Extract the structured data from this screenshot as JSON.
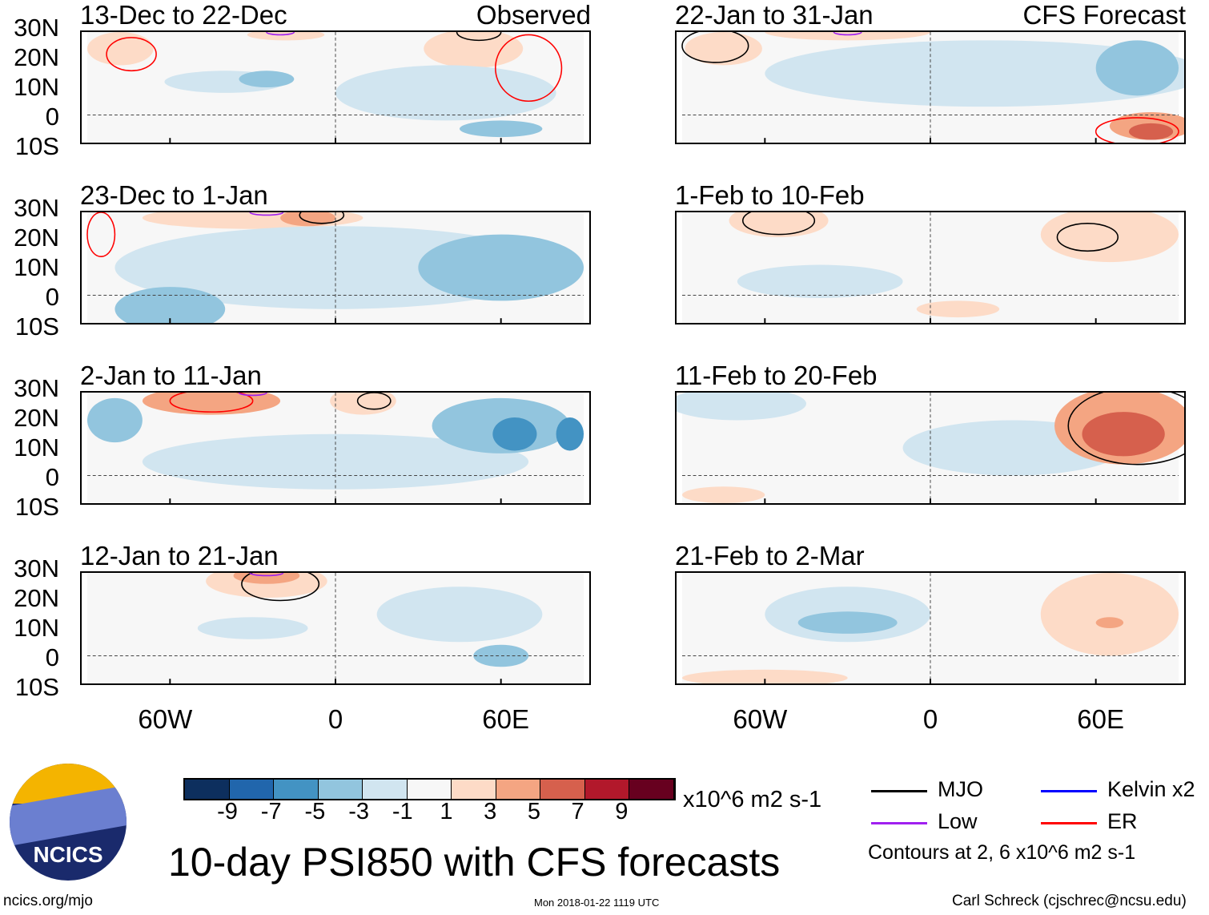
{
  "title": "10-day PSI850 with CFS forecasts",
  "footer": {
    "left": "ncics.org/mjo",
    "center": "Mon 2018-01-22 1119 UTC",
    "right": "Carl Schreck (cjschrec@ncsu.edu)"
  },
  "logo_text": "NCICS",
  "colorbar": {
    "unit": "x10^6 m2 s-1",
    "labels": [
      "-9",
      "-7",
      "-5",
      "-3",
      "-1",
      "1",
      "3",
      "5",
      "7",
      "9"
    ],
    "colors": [
      "#0d2f5e",
      "#2166ac",
      "#4393c3",
      "#92c5de",
      "#d1e5f0",
      "#f7f7f7",
      "#fddbc7",
      "#f4a582",
      "#d6604d",
      "#b2182b",
      "#67001f"
    ]
  },
  "legend": {
    "items": [
      {
        "label": "MJO",
        "color": "#000000"
      },
      {
        "label": "Kelvin x2",
        "color": "#0000ff"
      },
      {
        "label": "Low",
        "color": "#a020f0"
      },
      {
        "label": "ER",
        "color": "#ff0000"
      }
    ],
    "note": "Contours at 2, 6 x10^6 m2 s-1"
  },
  "axes": {
    "lat_labels": [
      "30N",
      "20N",
      "10N",
      "0",
      "10S"
    ],
    "lon_labels": [
      "60W",
      "0",
      "60E"
    ]
  },
  "col_tags": [
    "Observed",
    "CFS Forecast"
  ],
  "chart_data": {
    "type": "heatmap",
    "lon_range": [
      -90,
      90
    ],
    "lat_range": [
      -10,
      30
    ],
    "panels": [
      {
        "title": "13-Dec to 22-Dec",
        "blobs": [
          [
            -78,
            24,
            12,
            6,
            1
          ],
          [
            -40,
            12,
            22,
            4,
            -1
          ],
          [
            -25,
            13,
            10,
            3,
            -3
          ],
          [
            50,
            24,
            18,
            7,
            1
          ],
          [
            -18,
            29,
            14,
            2,
            1
          ],
          [
            60,
            -5,
            15,
            3,
            -3
          ],
          [
            40,
            8,
            40,
            10,
            -1
          ]
        ],
        "contours": [
          [
            -74,
            22,
            9,
            6,
            "ER"
          ],
          [
            70,
            17,
            12,
            12,
            "ER"
          ],
          [
            52,
            30,
            8,
            3,
            "MJO"
          ],
          [
            -20,
            30,
            5,
            1,
            "Low"
          ]
        ]
      },
      {
        "title": "22-Jan to 31-Jan",
        "blobs": [
          [
            -75,
            24,
            14,
            6,
            1
          ],
          [
            -30,
            30,
            30,
            3,
            1
          ],
          [
            20,
            15,
            80,
            12,
            -1
          ],
          [
            75,
            17,
            15,
            10,
            -3
          ],
          [
            80,
            -4,
            15,
            5,
            3
          ],
          [
            80,
            -6,
            8,
            3,
            5
          ]
        ],
        "contours": [
          [
            -78,
            25,
            12,
            6,
            "MJO"
          ],
          [
            -30,
            30,
            5,
            1,
            "Low"
          ],
          [
            75,
            -6,
            15,
            5,
            "ER"
          ]
        ]
      },
      {
        "title": "23-Dec to 1-Jan",
        "blobs": [
          [
            -30,
            28,
            40,
            4,
            1
          ],
          [
            -10,
            28,
            10,
            3,
            3
          ],
          [
            -60,
            -5,
            20,
            8,
            -3
          ],
          [
            60,
            10,
            30,
            12,
            -3
          ],
          [
            0,
            10,
            80,
            15,
            -1
          ]
        ],
        "contours": [
          [
            -5,
            29,
            8,
            3,
            "MJO"
          ],
          [
            -25,
            30,
            6,
            1,
            "Low"
          ],
          [
            -85,
            22,
            5,
            8,
            "ER"
          ]
        ]
      },
      {
        "title": "1-Feb to 10-Feb",
        "blobs": [
          [
            -55,
            27,
            18,
            6,
            1
          ],
          [
            65,
            22,
            25,
            10,
            1
          ],
          [
            -40,
            5,
            30,
            6,
            -1
          ],
          [
            10,
            -5,
            15,
            3,
            1
          ]
        ],
        "contours": [
          [
            -55,
            27,
            13,
            5,
            "MJO"
          ],
          [
            57,
            21,
            11,
            5,
            "MJO"
          ]
        ]
      },
      {
        "title": "2-Jan to 11-Jan",
        "blobs": [
          [
            -80,
            20,
            10,
            8,
            -3
          ],
          [
            -45,
            27,
            25,
            5,
            3
          ],
          [
            10,
            27,
            12,
            5,
            1
          ],
          [
            60,
            18,
            25,
            10,
            -3
          ],
          [
            65,
            15,
            8,
            6,
            -5
          ],
          [
            85,
            15,
            5,
            6,
            -5
          ],
          [
            0,
            5,
            70,
            10,
            -1
          ]
        ],
        "contours": [
          [
            -45,
            27,
            15,
            4,
            "ER"
          ],
          [
            14,
            27,
            6,
            3,
            "MJO"
          ],
          [
            -30,
            30,
            5,
            1,
            "Low"
          ]
        ]
      },
      {
        "title": "11-Feb to 20-Feb",
        "blobs": [
          [
            -70,
            26,
            25,
            6,
            -1
          ],
          [
            70,
            18,
            25,
            14,
            3
          ],
          [
            70,
            15,
            15,
            8,
            5
          ],
          [
            -75,
            -7,
            15,
            3,
            1
          ],
          [
            30,
            10,
            40,
            10,
            -1
          ]
        ],
        "contours": [
          [
            75,
            18,
            25,
            14,
            "MJO"
          ]
        ]
      },
      {
        "title": "12-Jan to 21-Jan",
        "blobs": [
          [
            -25,
            27,
            22,
            6,
            1
          ],
          [
            -25,
            29,
            12,
            3,
            3
          ],
          [
            45,
            15,
            30,
            10,
            -1
          ],
          [
            60,
            0,
            10,
            4,
            -3
          ],
          [
            -30,
            10,
            20,
            4,
            -1
          ]
        ],
        "contours": [
          [
            -20,
            26,
            14,
            6,
            "MJO"
          ],
          [
            -25,
            30,
            6,
            1,
            "Low"
          ]
        ]
      },
      {
        "title": "21-Feb to 2-Mar",
        "blobs": [
          [
            -30,
            15,
            30,
            10,
            -1
          ],
          [
            -30,
            12,
            18,
            4,
            -3
          ],
          [
            65,
            15,
            25,
            15,
            1
          ],
          [
            65,
            12,
            5,
            2,
            3
          ],
          [
            -60,
            -8,
            30,
            3,
            1
          ]
        ],
        "contours": []
      }
    ]
  }
}
